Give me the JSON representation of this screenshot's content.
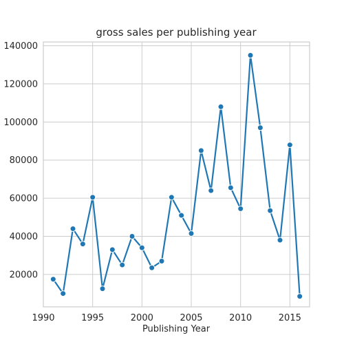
{
  "chart_data": {
    "type": "line",
    "title": "gross sales per publishing year",
    "xlabel": "Publishing Year",
    "ylabel": "",
    "xlim": [
      1990,
      2017
    ],
    "ylim": [
      3000,
      142000
    ],
    "x_ticks": [
      1990,
      1995,
      2000,
      2005,
      2010,
      2015
    ],
    "y_ticks": [
      20000,
      40000,
      60000,
      80000,
      100000,
      120000,
      140000
    ],
    "grid": true,
    "legend": "none",
    "colors": {
      "line": "#1f77b4",
      "grid": "#cccccc",
      "spine": "#cccccc",
      "text": "#262626"
    },
    "series": [
      {
        "x": [
          1991,
          1992,
          1993,
          1994,
          1995,
          1996,
          1997,
          1998,
          1999,
          2000,
          2001,
          2002,
          2003,
          2004,
          2005,
          2006,
          2007,
          2008,
          2009,
          2010,
          2011,
          2012,
          2013,
          2014,
          2015,
          2016
        ],
        "values": [
          17500,
          10000,
          44000,
          36000,
          60500,
          12500,
          33000,
          25000,
          40000,
          34000,
          23500,
          27000,
          60500,
          51000,
          41500,
          85000,
          64000,
          108000,
          65500,
          54500,
          135000,
          97000,
          53500,
          38000,
          88000,
          8500
        ]
      }
    ]
  }
}
